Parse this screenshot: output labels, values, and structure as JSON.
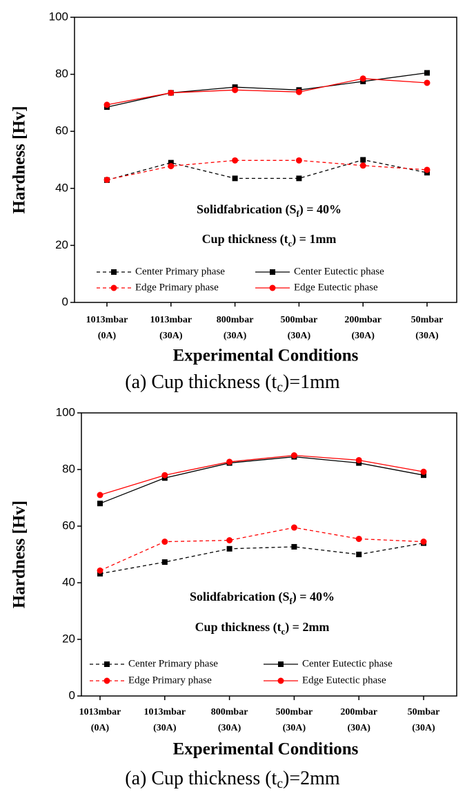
{
  "chart_data": [
    {
      "type": "line",
      "caption": {
        "before": "(a)  Cup  thickness  (t",
        "sub": "c",
        "after": ")=1mm"
      },
      "xlabel": "Experimental Conditions",
      "ylabel": "Hardness [Hv]",
      "annotations": [
        {
          "before": "Solidfabrication (S",
          "sub": "f",
          "after": ") = 40%"
        },
        {
          "before": "Cup thickness (t",
          "sub": "c",
          "after": ") = 1mm"
        }
      ],
      "categories": [
        "1013mbar\n(0A)",
        "1013mbar\n(30A)",
        "800mbar\n(30A)",
        "500mbar\n(30A)",
        "200mbar\n(30A)",
        "50mbar\n(30A)"
      ],
      "ylim": [
        0,
        100
      ],
      "yticks": [
        0,
        20,
        40,
        60,
        80,
        100
      ],
      "series": [
        {
          "name": "Center Primary phase",
          "color": "#000000",
          "linestyle": "dashed",
          "marker": "square",
          "values": [
            42.9,
            49,
            43.5,
            43.5,
            50,
            45.5
          ]
        },
        {
          "name": "Center Eutectic phase",
          "color": "#000000",
          "linestyle": "solid",
          "marker": "square",
          "values": [
            68.5,
            73.5,
            75.5,
            74.5,
            77.5,
            80.5
          ]
        },
        {
          "name": "Edge Primary phase",
          "color": "#ff0000",
          "linestyle": "dashed",
          "marker": "circle",
          "values": [
            43,
            47.8,
            49.8,
            49.8,
            48,
            46.5
          ]
        },
        {
          "name": "Edge Eutectic phase",
          "color": "#ff0000",
          "linestyle": "solid",
          "marker": "circle",
          "values": [
            69.3,
            73.5,
            74.5,
            73.8,
            78.5,
            77
          ]
        }
      ]
    },
    {
      "type": "line",
      "caption": {
        "before": "(a)  Cup  thickness  (t",
        "sub": "c",
        "after": ")=2mm"
      },
      "xlabel": "Experimental Conditions",
      "ylabel": "Hardness [Hv]",
      "annotations": [
        {
          "before": "Solidfabrication (S",
          "sub": "f",
          "after": ") = 40%"
        },
        {
          "before": "Cup thickness (t",
          "sub": "c",
          "after": ") = 2mm"
        }
      ],
      "categories": [
        "1013mbar\n(0A)",
        "1013mbar\n(30A)",
        "800mbar\n(30A)",
        "500mbar\n(30A)",
        "200mbar\n(30A)",
        "50mbar\n(30A)"
      ],
      "ylim": [
        0,
        100
      ],
      "yticks": [
        0,
        20,
        40,
        60,
        80,
        100
      ],
      "series": [
        {
          "name": "Center Primary phase",
          "color": "#000000",
          "linestyle": "dashed",
          "marker": "square",
          "values": [
            43.2,
            47.3,
            52,
            52.7,
            50,
            54
          ]
        },
        {
          "name": "Center Eutectic phase",
          "color": "#000000",
          "linestyle": "solid",
          "marker": "square",
          "values": [
            68,
            77,
            82.3,
            84.5,
            82.3,
            78
          ]
        },
        {
          "name": "Edge Primary phase",
          "color": "#ff0000",
          "linestyle": "dashed",
          "marker": "circle",
          "values": [
            44.3,
            54.5,
            55,
            59.5,
            55.5,
            54.5
          ]
        },
        {
          "name": "Edge Eutectic phase",
          "color": "#ff0000",
          "linestyle": "solid",
          "marker": "circle",
          "values": [
            71,
            78,
            82.7,
            85,
            83.3,
            79.2
          ]
        }
      ]
    }
  ]
}
